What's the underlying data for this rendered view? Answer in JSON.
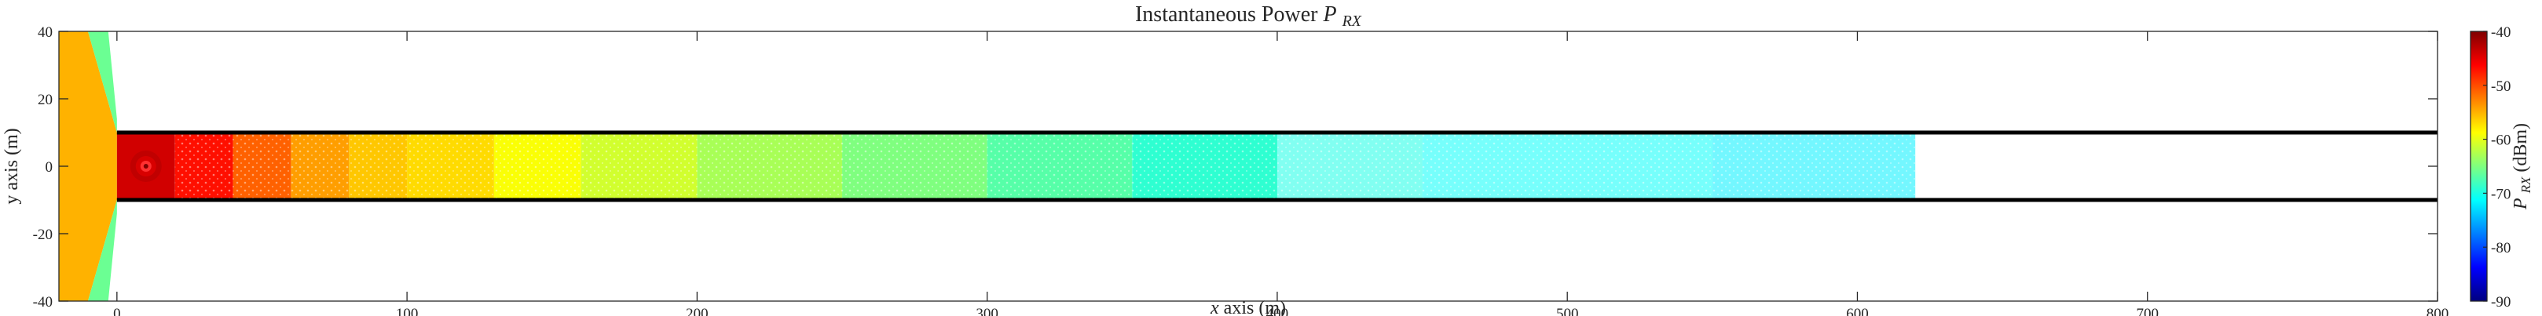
{
  "chart_data": {
    "type": "heatmap",
    "title": "Instantaneous Power",
    "title_symbol": {
      "base": "P",
      "sub": "RX"
    },
    "xlabel": {
      "italic": "x",
      "rest": " axis (m)"
    },
    "ylabel": "y axis (m)",
    "xlim": [
      -20,
      800
    ],
    "ylim": [
      -40,
      40
    ],
    "xticks": [
      0,
      100,
      200,
      300,
      400,
      500,
      600,
      700,
      800
    ],
    "yticks": [
      -40,
      -20,
      0,
      20,
      40
    ],
    "grid": false,
    "colorbar": {
      "label_symbol": {
        "base": "P",
        "sub": "RX"
      },
      "label_unit": " (dBm)",
      "range": [
        -90,
        -40
      ],
      "ticks": [
        -90,
        -80,
        -70,
        -60,
        -50,
        -40
      ],
      "colormap": [
        "#00007f",
        "#0000ff",
        "#007fff",
        "#00ffff",
        "#7fff7f",
        "#ffff00",
        "#ff7f00",
        "#ff0000",
        "#7f0000"
      ]
    },
    "transmitter": {
      "x": 10,
      "y": 0,
      "power_dbm": -40
    },
    "walls": [
      {
        "name": "upper-wall",
        "x": [
          0,
          800
        ],
        "y": 10
      },
      {
        "name": "lower-wall",
        "x": [
          0,
          800
        ],
        "y": -10
      }
    ],
    "field_samples": [
      {
        "x_start": 0,
        "x_end": 20,
        "power_dbm": -44
      },
      {
        "x_start": 20,
        "x_end": 40,
        "power_dbm": -47
      },
      {
        "x_start": 40,
        "x_end": 60,
        "power_dbm": -51
      },
      {
        "x_start": 60,
        "x_end": 80,
        "power_dbm": -54
      },
      {
        "x_start": 80,
        "x_end": 100,
        "power_dbm": -56
      },
      {
        "x_start": 100,
        "x_end": 130,
        "power_dbm": -57
      },
      {
        "x_start": 130,
        "x_end": 160,
        "power_dbm": -59
      },
      {
        "x_start": 160,
        "x_end": 200,
        "power_dbm": -61
      },
      {
        "x_start": 200,
        "x_end": 250,
        "power_dbm": -63
      },
      {
        "x_start": 250,
        "x_end": 300,
        "power_dbm": -65
      },
      {
        "x_start": 300,
        "x_end": 350,
        "power_dbm": -67
      },
      {
        "x_start": 350,
        "x_end": 400,
        "power_dbm": -69
      },
      {
        "x_start": 400,
        "x_end": 450,
        "power_dbm": -70
      },
      {
        "x_start": 450,
        "x_end": 550,
        "power_dbm": -71
      },
      {
        "x_start": 550,
        "x_end": 620,
        "power_dbm": -72
      }
    ],
    "outside_region": {
      "x_range": [
        -20,
        0
      ],
      "power_dbm": -55
    }
  },
  "colors": {
    "axis": "#262626",
    "wall": "#000000",
    "background": "#ffffff"
  }
}
